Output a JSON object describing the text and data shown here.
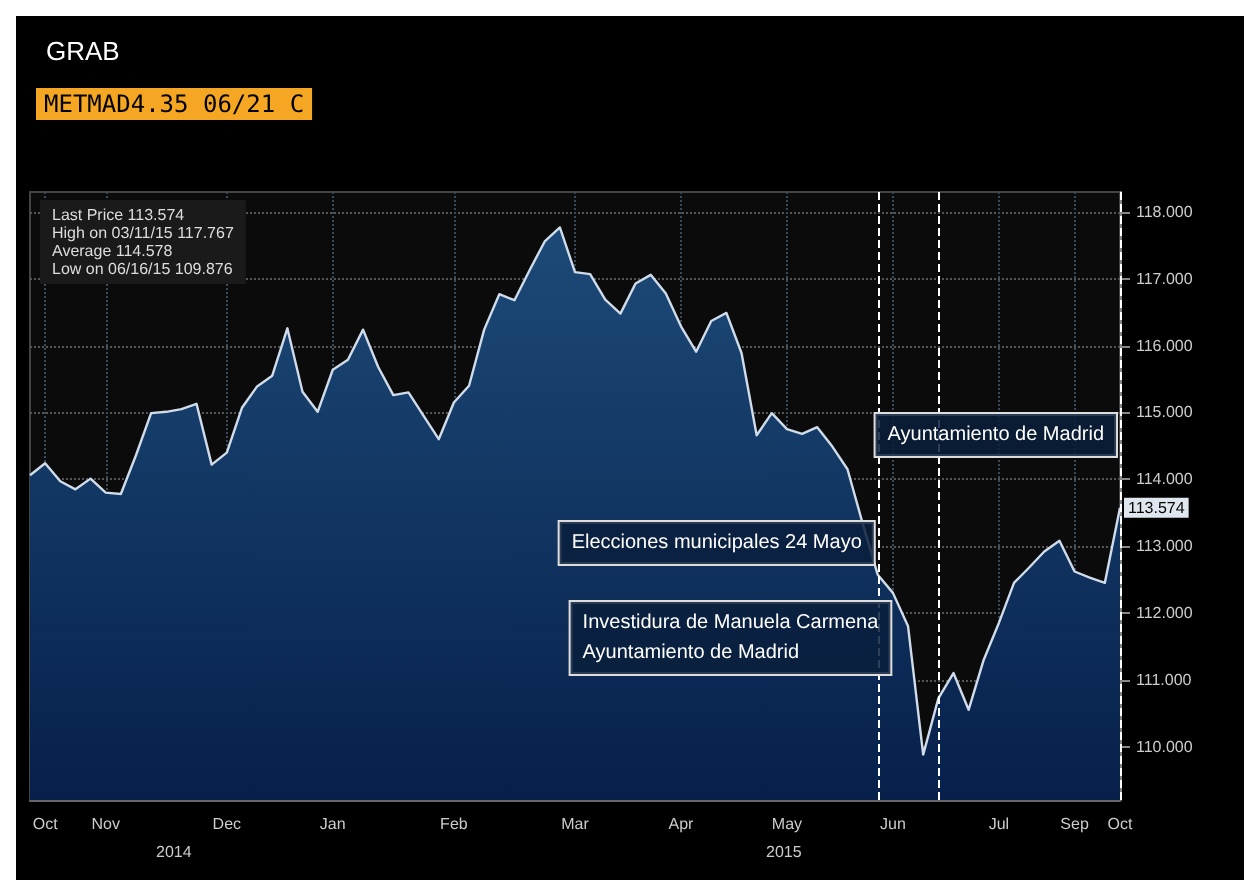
{
  "chart_data": {
    "type": "area",
    "title": "GRAB",
    "subtitle": "METMAD4.35 06/21 C",
    "categories": [
      null,
      "Oct",
      null,
      null,
      null,
      "Nov",
      null,
      null,
      null,
      null,
      null,
      null,
      null,
      "Dec",
      null,
      null,
      null,
      null,
      null,
      null,
      "Jan",
      null,
      null,
      null,
      null,
      null,
      null,
      null,
      "Feb",
      null,
      null,
      null,
      null,
      null,
      null,
      null,
      "Mar",
      null,
      null,
      null,
      null,
      null,
      null,
      "Apr",
      null,
      null,
      null,
      null,
      null,
      null,
      "May",
      null,
      null,
      null,
      null,
      null,
      null,
      "Jun",
      null,
      null,
      null,
      null,
      null,
      null,
      "Jul",
      null,
      null,
      null,
      null,
      "Sep",
      null,
      null,
      "Oct"
    ],
    "series": [
      {
        "color": "#d0dcea",
        "values": [
          114.06,
          114.24,
          113.97,
          113.85,
          114.01,
          113.8,
          113.78,
          114.36,
          114.99,
          115.01,
          115.05,
          115.13,
          114.22,
          114.4,
          115.07,
          115.39,
          115.55,
          116.26,
          115.31,
          115.01,
          115.64,
          115.79,
          116.24,
          115.68,
          115.26,
          115.3,
          114.95,
          114.6,
          115.15,
          115.4,
          116.24,
          116.77,
          116.68,
          117.13,
          117.56,
          117.77,
          117.1,
          117.07,
          116.69,
          116.48,
          116.93,
          117.06,
          116.78,
          116.29,
          115.91,
          116.37,
          116.49,
          115.89,
          114.66,
          114.99,
          114.75,
          114.68,
          114.78,
          114.49,
          114.15,
          113.34,
          112.57,
          112.3,
          111.8,
          109.88,
          110.72,
          111.1,
          110.55,
          111.3,
          111.85,
          112.45,
          112.68,
          112.92,
          113.08,
          112.62,
          112.53,
          112.45,
          113.574
        ],
        "value_labels": [
          null,
          null,
          null,
          null,
          null,
          null,
          null,
          null,
          null,
          null,
          null,
          null,
          null,
          null,
          null,
          null,
          null,
          null,
          null,
          null,
          null,
          null,
          null,
          null,
          null,
          null,
          null,
          null,
          null,
          null,
          null,
          null,
          null,
          null,
          null,
          null,
          null,
          null,
          null,
          null,
          null,
          null,
          null,
          null,
          null,
          null,
          null,
          null,
          null,
          null,
          null,
          null,
          null,
          null,
          null,
          null,
          null,
          null,
          null,
          null,
          null,
          null,
          null,
          null,
          null,
          null,
          null,
          null,
          null,
          null,
          null,
          null,
          "113.574"
        ]
      }
    ],
    "ylim": [
      109.2,
      118.3
    ],
    "yticks": [
      {
        "value": 110,
        "label": "110.000"
      },
      {
        "value": 111,
        "label": "111.000"
      },
      {
        "value": 112,
        "label": "112.000"
      },
      {
        "value": 113,
        "label": "113.000"
      },
      {
        "value": 114,
        "label": "114.000"
      },
      {
        "value": 115,
        "label": "115.000"
      },
      {
        "value": 116,
        "label": "116.000"
      },
      {
        "value": 117,
        "label": "117.000"
      },
      {
        "value": 118,
        "label": "118.000"
      }
    ],
    "grid": true,
    "annotations": [
      "Last Price 113.574",
      "High on 03/11/15 117.767",
      "Average 114.578",
      "Low on 06/16/15 109.876",
      "2014",
      "2015",
      "Elecciones municipales 24 Mayo",
      "Investidura de Manuela Carmena\nAyuntamiento de Madrid",
      "Ayuntamiento de Madrid"
    ]
  }
}
